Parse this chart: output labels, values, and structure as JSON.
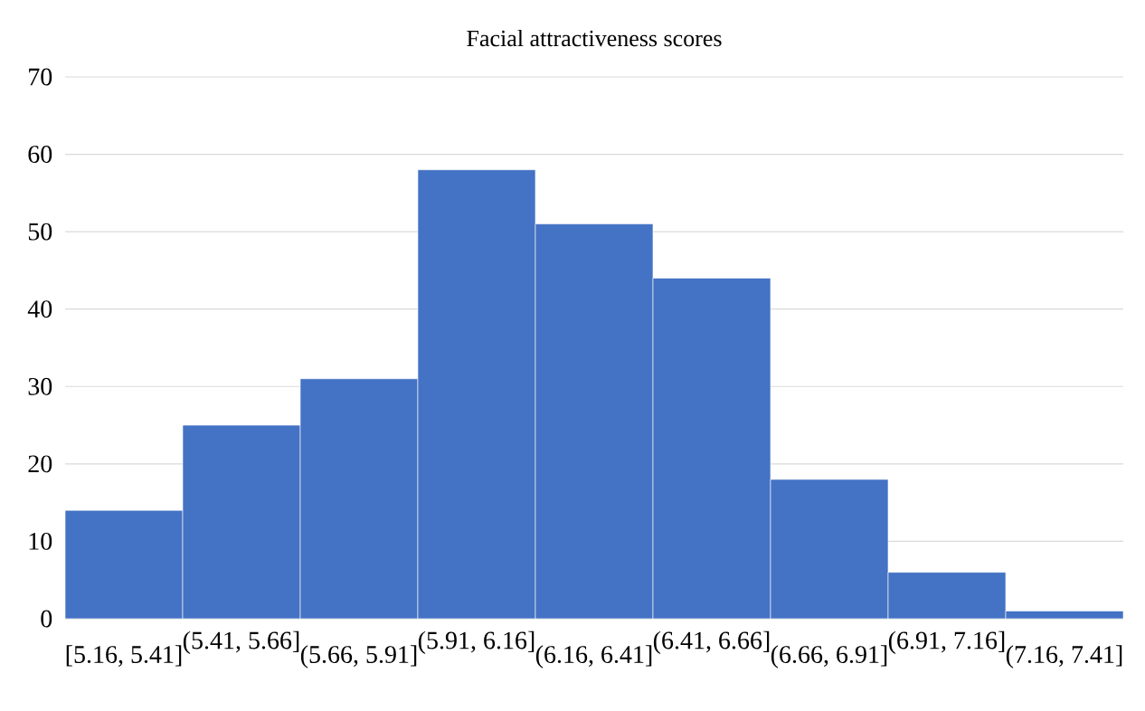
{
  "chart_data": {
    "type": "bar",
    "title": "Facial attractiveness scores",
    "categories": [
      "[5.16, 5.41]",
      "(5.41, 5.66]",
      "(5.66, 5.91]",
      "(5.91, 6.16]",
      "(6.16, 6.41]",
      "(6.41, 6.66]",
      "(6.66, 6.91]",
      "(6.91, 7.16]",
      "(7.16, 7.41]"
    ],
    "values": [
      14,
      25,
      31,
      58,
      51,
      44,
      18,
      6,
      1
    ],
    "color": "#4472c4",
    "ylim": [
      0,
      70
    ],
    "yticks": [
      0,
      10,
      20,
      30,
      40,
      50,
      60,
      70
    ],
    "grid": "y"
  }
}
